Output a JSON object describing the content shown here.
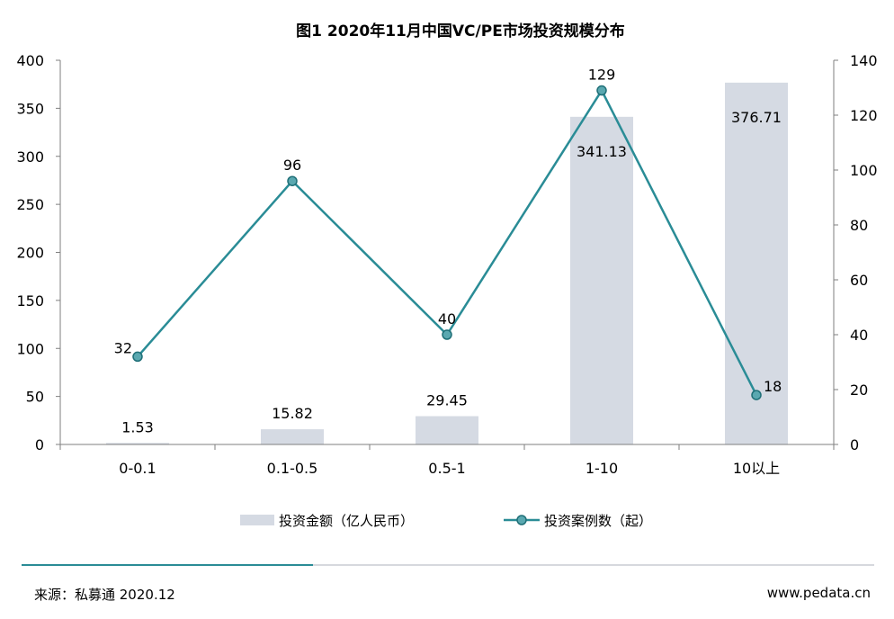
{
  "chart_data": {
    "type": "bar",
    "title": "图1   2020年11月中国VC/PE市场投资规模分布",
    "categories": [
      "0-0.1",
      "0.1-0.5",
      "0.5-1",
      "1-10",
      "10以上"
    ],
    "series": [
      {
        "name": "投资金额（亿人民币）",
        "type": "bar",
        "axis": "left",
        "values": [
          1.53,
          15.82,
          29.45,
          341.13,
          376.71
        ],
        "labels": [
          "1.53",
          "15.82",
          "29.45",
          "341.13",
          "376.71"
        ],
        "color": "#d5dae3"
      },
      {
        "name": "投资案例数（起）",
        "type": "line",
        "axis": "right",
        "values": [
          32,
          96,
          40,
          129,
          18
        ],
        "labels": [
          "32",
          "96",
          "40",
          "129",
          "18"
        ],
        "color": "#2a8c96"
      }
    ],
    "y_left": {
      "min": 0,
      "max": 400,
      "ticks": [
        "0",
        "50",
        "100",
        "150",
        "200",
        "250",
        "300",
        "350",
        "400"
      ]
    },
    "y_right": {
      "min": 0,
      "max": 140,
      "ticks": [
        "0",
        "20",
        "40",
        "60",
        "80",
        "100",
        "120",
        "140"
      ]
    },
    "grid": false,
    "legend_position": "bottom"
  },
  "footer": {
    "source": "来源：私募通 2020.12",
    "website": "www.pedata.cn"
  },
  "colors": {
    "accent_line": "#2a8c96",
    "divider": "#c8ccd2"
  }
}
